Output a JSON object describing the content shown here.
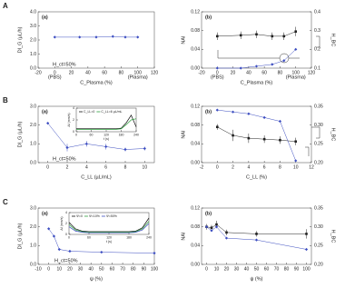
{
  "row_labels": [
    "A",
    "B",
    "C"
  ],
  "chart_data": [
    {
      "type": "line",
      "panel_label": "(a)",
      "ylabel": "DI_G (µL/h)",
      "xlabel": "C_Plasma (%)",
      "x": [
        0,
        30,
        50,
        70,
        85,
        100
      ],
      "series": [
        {
          "color": "#3b4cc0",
          "marker": "diamond",
          "values": [
            2.2,
            2.2,
            2.2,
            2.25,
            2.2,
            2.2
          ]
        }
      ],
      "xlim": [
        -20,
        120
      ],
      "xticks": [
        -20,
        0,
        20,
        40,
        60,
        80,
        100,
        120
      ],
      "ylim": [
        0,
        4
      ],
      "yticks": [
        {
          "value": 0,
          "label": "0.0"
        },
        {
          "value": 1,
          "label": "1.0"
        },
        {
          "value": 2,
          "label": "2.0"
        },
        {
          "value": 3,
          "label": "3.0"
        },
        {
          "value": 4,
          "label": "4.0"
        }
      ],
      "annotations": [
        "H_ct=50%",
        "(PBS)",
        "(Plasma)"
      ]
    },
    {
      "type": "line",
      "panel_label": "(b)",
      "ylabel": "NAI",
      "y2label": "H_BC",
      "xlabel": "C_Plasma (%)",
      "x": [
        0,
        30,
        50,
        70,
        85,
        100
      ],
      "series": [
        {
          "color": "#222222",
          "marker": "square",
          "values": [
            0.068,
            0.07,
            0.072,
            0.068,
            0.068,
            0.078
          ],
          "errors": [
            0.008,
            0.008,
            0.008,
            0.008,
            0.008,
            0.01
          ]
        },
        {
          "color": "#3b4cc0",
          "marker": "diamond",
          "axis": "y2",
          "values": [
            0.1,
            0.1,
            0.11,
            0.12,
            0.14,
            0.2
          ]
        }
      ],
      "xlim": [
        -20,
        120
      ],
      "xticks": [
        -20,
        0,
        20,
        40,
        60,
        80,
        100,
        120
      ],
      "ylim": [
        0,
        0.12
      ],
      "yticks": [
        {
          "value": 0,
          "label": "0.00"
        },
        {
          "value": 0.04,
          "label": "0.04"
        },
        {
          "value": 0.08,
          "label": "0.08"
        },
        {
          "value": 0.12,
          "label": "0.12"
        }
      ],
      "y2lim": [
        0.1,
        0.4
      ],
      "y2ticks": [
        0.1,
        0.2,
        0.3,
        0.4
      ],
      "annotations": [
        "(PBS)",
        "(Plasma)"
      ]
    },
    {
      "type": "line",
      "panel_label": "(a)",
      "ylabel": "DI_G (µL/h)",
      "xlabel": "C_LL (µL/mL)",
      "x": [
        0,
        2,
        4,
        6,
        8,
        10
      ],
      "series": [
        {
          "color": "#3b4cc0",
          "marker": "diamond",
          "values": [
            2.1,
            0.8,
            1.0,
            0.85,
            0.7,
            0.75
          ],
          "errors": [
            0.05,
            0.2,
            0.15,
            0.15,
            0.1,
            0.1
          ]
        }
      ],
      "xlim": [
        -1,
        11
      ],
      "xticks": [
        0,
        2,
        4,
        6,
        8,
        10
      ],
      "ylim": [
        0,
        3
      ],
      "yticks": [
        {
          "value": 0,
          "label": "0.0"
        },
        {
          "value": 1,
          "label": "1.0"
        },
        {
          "value": 2,
          "label": "2.0"
        },
        {
          "value": 3,
          "label": "3.0"
        }
      ],
      "annotations": [
        "H_ct=50%"
      ],
      "inset": {
        "xlabel": "t (s)",
        "ylabel": "ΔI (mm/s)",
        "x": [
          0,
          20,
          40,
          60,
          80,
          100,
          120,
          140,
          160,
          180,
          200,
          220,
          240
        ],
        "series": [
          {
            "name": "C_LL=0",
            "color": "#111111",
            "values": [
              0.5,
              0.5,
              0.5,
              0.5,
              0.5,
              0.5,
              0.5,
              0.5,
              0.5,
              0.6,
              1.5,
              2.8,
              0.8
            ]
          },
          {
            "name": "C_LL=6 µL/mL",
            "color": "#2e9e3e",
            "values": [
              0.4,
              0.4,
              0.4,
              0.4,
              0.4,
              0.4,
              0.4,
              0.4,
              0.4,
              0.5,
              1.2,
              2.0,
              2.2
            ]
          }
        ],
        "xlim": [
          0,
          240
        ],
        "xticks": [
          0,
          60,
          120,
          180,
          240
        ],
        "ylim": [
          0,
          4
        ],
        "yticks": [
          0,
          2,
          4
        ]
      }
    },
    {
      "type": "line",
      "panel_label": "(b)",
      "ylabel": "NAI",
      "y2label": "H_BC",
      "xlabel": "C_LL (%)",
      "x": [
        0,
        2,
        4,
        6,
        8,
        10
      ],
      "series": [
        {
          "color": "#222222",
          "marker": "square",
          "values": [
            0.076,
            0.058,
            0.052,
            0.05,
            0.048,
            0.045
          ],
          "errors": [
            0.006,
            0.012,
            0.01,
            0.008,
            0.008,
            0.008
          ]
        },
        {
          "color": "#3b4cc0",
          "marker": "diamond",
          "axis": "y2",
          "values": [
            0.34,
            0.335,
            0.33,
            0.32,
            0.31,
            0.205
          ]
        }
      ],
      "xlim": [
        -2,
        12
      ],
      "xticks": [
        -2,
        0,
        2,
        4,
        6,
        8,
        10,
        12
      ],
      "ylim": [
        0,
        0.12
      ],
      "yticks": [
        {
          "value": 0,
          "label": "0.00"
        },
        {
          "value": 0.04,
          "label": "0.04"
        },
        {
          "value": 0.08,
          "label": "0.08"
        },
        {
          "value": 0.12,
          "label": "0.12"
        }
      ],
      "y2lim": [
        0.2,
        0.35
      ],
      "y2ticks": [
        {
          "value": 0.2,
          "label": "0.20"
        },
        0.25,
        {
          "value": 0.3,
          "label": "0.30"
        },
        0.35
      ]
    },
    {
      "type": "line",
      "panel_label": "(a)",
      "ylabel": "DI_G (µL/h)",
      "xlabel": "ψ (%)",
      "x": [
        0,
        5,
        10,
        20,
        50,
        100
      ],
      "series": [
        {
          "color": "#3b4cc0",
          "marker": "diamond",
          "values": [
            1.9,
            1.5,
            0.8,
            0.7,
            0.65,
            0.6
          ]
        }
      ],
      "xlim": [
        -10,
        100
      ],
      "xticks": [
        -10,
        0,
        10,
        20,
        30,
        40,
        50,
        60,
        70,
        80,
        90,
        100
      ],
      "ylim": [
        0,
        3
      ],
      "yticks": [
        {
          "value": 0,
          "label": "0.0"
        },
        {
          "value": 1,
          "label": "1.0"
        },
        {
          "value": 2,
          "label": "2.0"
        },
        {
          "value": 3,
          "label": "3.0"
        }
      ],
      "annotations": [
        "H_ct=50%"
      ],
      "inset": {
        "xlabel": "t (s)",
        "ylabel": "ΔI (mm/s)",
        "x": [
          0,
          20,
          40,
          60,
          80,
          100,
          120,
          140,
          160,
          180,
          200,
          220,
          240
        ],
        "series": [
          {
            "name": "Ψ=0",
            "color": "#111111",
            "values": [
              2.2,
              1.0,
              0.6,
              0.5,
              0.5,
              0.5,
              0.5,
              0.5,
              0.5,
              0.5,
              0.6,
              1.2,
              3.0
            ]
          },
          {
            "name": "Ψ=10%",
            "color": "#2e9e3e",
            "values": [
              1.8,
              0.8,
              0.5,
              0.4,
              0.4,
              0.4,
              0.4,
              0.4,
              0.4,
              0.4,
              0.5,
              1.0,
              2.4
            ]
          },
          {
            "name": "Ψ=50%",
            "color": "#3b4cc0",
            "values": [
              1.4,
              0.6,
              0.4,
              0.3,
              0.3,
              0.3,
              0.3,
              0.3,
              0.3,
              0.3,
              0.4,
              0.8,
              2.0
            ]
          }
        ],
        "xlim": [
          0,
          240
        ],
        "xticks": [
          0,
          60,
          120,
          180,
          240
        ],
        "ylim": [
          0,
          4
        ],
        "yticks": [
          0,
          2,
          4
        ]
      }
    },
    {
      "type": "line",
      "panel_label": "(b)",
      "ylabel": "NAI",
      "y2label": "H_BC",
      "xlabel": "ψ (%)",
      "x": [
        0,
        5,
        10,
        20,
        50,
        100
      ],
      "series": [
        {
          "color": "#222222",
          "marker": "square",
          "values": [
            0.08,
            0.078,
            0.085,
            0.068,
            0.065,
            0.065
          ],
          "errors": [
            0.006,
            0.006,
            0.008,
            0.006,
            0.006,
            0.01
          ]
        },
        {
          "color": "#3b4cc0",
          "marker": "diamond",
          "axis": "y2",
          "values": [
            0.3,
            0.29,
            0.3,
            0.27,
            0.265,
            0.24
          ]
        }
      ],
      "xlim": [
        -5,
        105
      ],
      "xticks": [
        0,
        10,
        20,
        30,
        40,
        50,
        60,
        70,
        80,
        90,
        100
      ],
      "ylim": [
        0,
        0.12
      ],
      "yticks": [
        {
          "value": 0,
          "label": "0.00"
        },
        {
          "value": 0.04,
          "label": "0.04"
        },
        {
          "value": 0.08,
          "label": "0.08"
        },
        {
          "value": 0.12,
          "label": "0.12"
        }
      ],
      "y2lim": [
        0.2,
        0.35
      ],
      "y2ticks": [
        {
          "value": 0.2,
          "label": "0.20"
        },
        0.25,
        {
          "value": 0.3,
          "label": "0.30"
        },
        0.35
      ]
    }
  ]
}
